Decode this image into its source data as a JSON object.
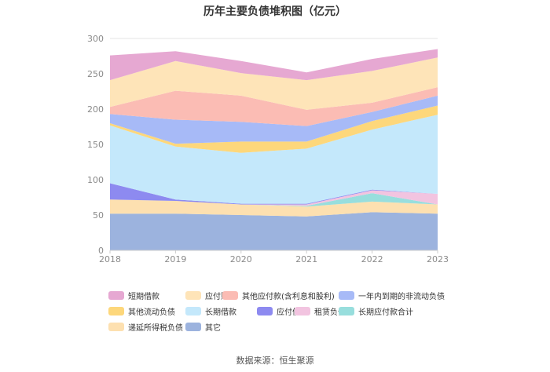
{
  "title": "历年主要负债堆积图（亿元）",
  "source_note": "数据来源：恒生聚源",
  "chart_data": {
    "type": "area",
    "stacked": true,
    "title": "历年主要负债堆积图（亿元）",
    "x": [
      "2018",
      "2019",
      "2020",
      "2021",
      "2022",
      "2023"
    ],
    "ylim": [
      0,
      300
    ],
    "yticks": [
      0,
      50,
      100,
      150,
      200,
      250,
      300
    ],
    "grid": true,
    "legend_position": "bottom",
    "series": [
      {
        "name": "其它",
        "color": "#9cb3de",
        "values": [
          52,
          52,
          50,
          48,
          54,
          52
        ]
      },
      {
        "name": "递延所得税负债",
        "color": "#fde0b0",
        "values": [
          20,
          18,
          15,
          14,
          15,
          13
        ]
      },
      {
        "name": "长期应付款合计",
        "color": "#98dedd",
        "values": [
          0,
          0,
          0,
          1,
          12,
          0
        ]
      },
      {
        "name": "租赁负债",
        "color": "#f2c4e0",
        "values": [
          0,
          0,
          0,
          2,
          4,
          15
        ]
      },
      {
        "name": "应付债券",
        "color": "#8d8af0",
        "values": [
          23,
          2,
          1,
          1,
          1,
          0
        ]
      },
      {
        "name": "长期借款",
        "color": "#c4e8fb",
        "values": [
          82,
          75,
          72,
          78,
          85,
          112
        ]
      },
      {
        "name": "其他流动负债",
        "color": "#fdd77b",
        "values": [
          3,
          4,
          16,
          10,
          12,
          13
        ]
      },
      {
        "name": "一年内到期的非流动负债",
        "color": "#a7baf7",
        "values": [
          13,
          34,
          28,
          22,
          13,
          14
        ]
      },
      {
        "name": "其他应付款(含利息和股利)",
        "color": "#fbbcb4",
        "values": [
          10,
          41,
          37,
          23,
          13,
          12
        ]
      },
      {
        "name": "应付账款",
        "color": "#fee4b8",
        "values": [
          38,
          42,
          32,
          42,
          45,
          42
        ]
      },
      {
        "name": "短期借款",
        "color": "#e6a8d2",
        "values": [
          35,
          14,
          17,
          11,
          17,
          12
        ]
      }
    ],
    "legend_order": [
      "短期借款",
      "应付账款",
      "其他应付款(含利息和股利)",
      "一年内到期的非流动负债",
      "其他流动负债",
      "长期借款",
      "应付债券",
      "租赁负债",
      "长期应付款合计",
      "递延所得税负债",
      "其它"
    ]
  }
}
